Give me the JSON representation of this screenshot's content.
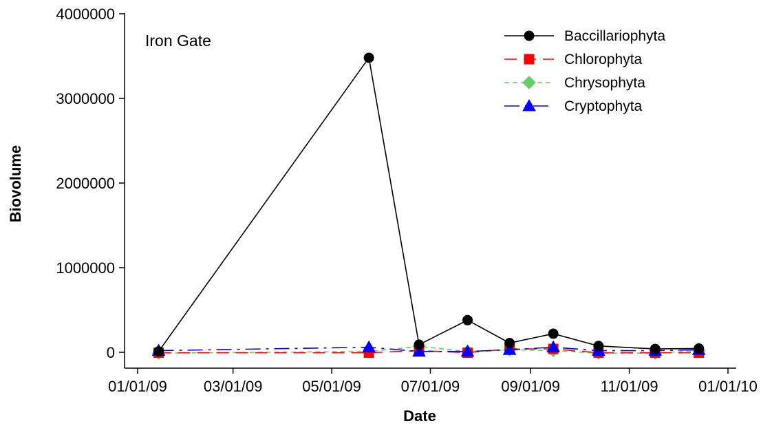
{
  "chart_data": {
    "type": "line",
    "title": "",
    "annotation": "Iron Gate",
    "xlabel": "Date",
    "ylabel": "Biovolume",
    "x_axis_type": "date",
    "xlim": [
      "2009-01-01",
      "2010-01-01"
    ],
    "ylim": [
      -150000,
      4000000
    ],
    "x_ticks": [
      {
        "date": "2009-01-01",
        "label": "01/01/09"
      },
      {
        "date": "2009-03-01",
        "label": "03/01/09"
      },
      {
        "date": "2009-05-01",
        "label": "05/01/09"
      },
      {
        "date": "2009-07-01",
        "label": "07/01/09"
      },
      {
        "date": "2009-09-01",
        "label": "09/01/09"
      },
      {
        "date": "2009-11-01",
        "label": "11/01/09"
      },
      {
        "date": "2010-01-01",
        "label": "01/01/10"
      }
    ],
    "y_ticks": [
      {
        "value": 0,
        "label": "0"
      },
      {
        "value": 1000000,
        "label": "1000000"
      },
      {
        "value": 2000000,
        "label": "2000000"
      },
      {
        "value": 3000000,
        "label": "3000000"
      },
      {
        "value": 4000000,
        "label": "4000000"
      }
    ],
    "grid": false,
    "legend_position": "top-right",
    "x": [
      "2009-01-14",
      "2009-05-24",
      "2009-06-24",
      "2009-07-24",
      "2009-08-19",
      "2009-09-15",
      "2009-10-13",
      "2009-11-17",
      "2009-12-14"
    ],
    "series": [
      {
        "name": "Baccillariophyta",
        "color": "#000000",
        "marker": "circle",
        "dash": "solid",
        "values": [
          10000,
          3480000,
          90000,
          380000,
          110000,
          220000,
          75000,
          40000,
          45000
        ]
      },
      {
        "name": "Chlorophyta",
        "color": "#ff0000",
        "marker": "square",
        "dash": "long-dash",
        "values": [
          -5000,
          -5000,
          20000,
          -5000,
          40000,
          40000,
          -5000,
          -5000,
          -5000
        ]
      },
      {
        "name": "Chrysophyta",
        "color": "#66cc66",
        "marker": "diamond",
        "dash": "short-dash",
        "values": [
          -10000,
          10000,
          70000,
          10000,
          30000,
          20000,
          -10000,
          -10000,
          20000
        ]
      },
      {
        "name": "Cryptophyta",
        "color": "#0000ff",
        "marker": "triangle",
        "dash": "dash-dot",
        "values": [
          20000,
          60000,
          10000,
          10000,
          30000,
          60000,
          20000,
          20000,
          30000
        ]
      }
    ]
  }
}
